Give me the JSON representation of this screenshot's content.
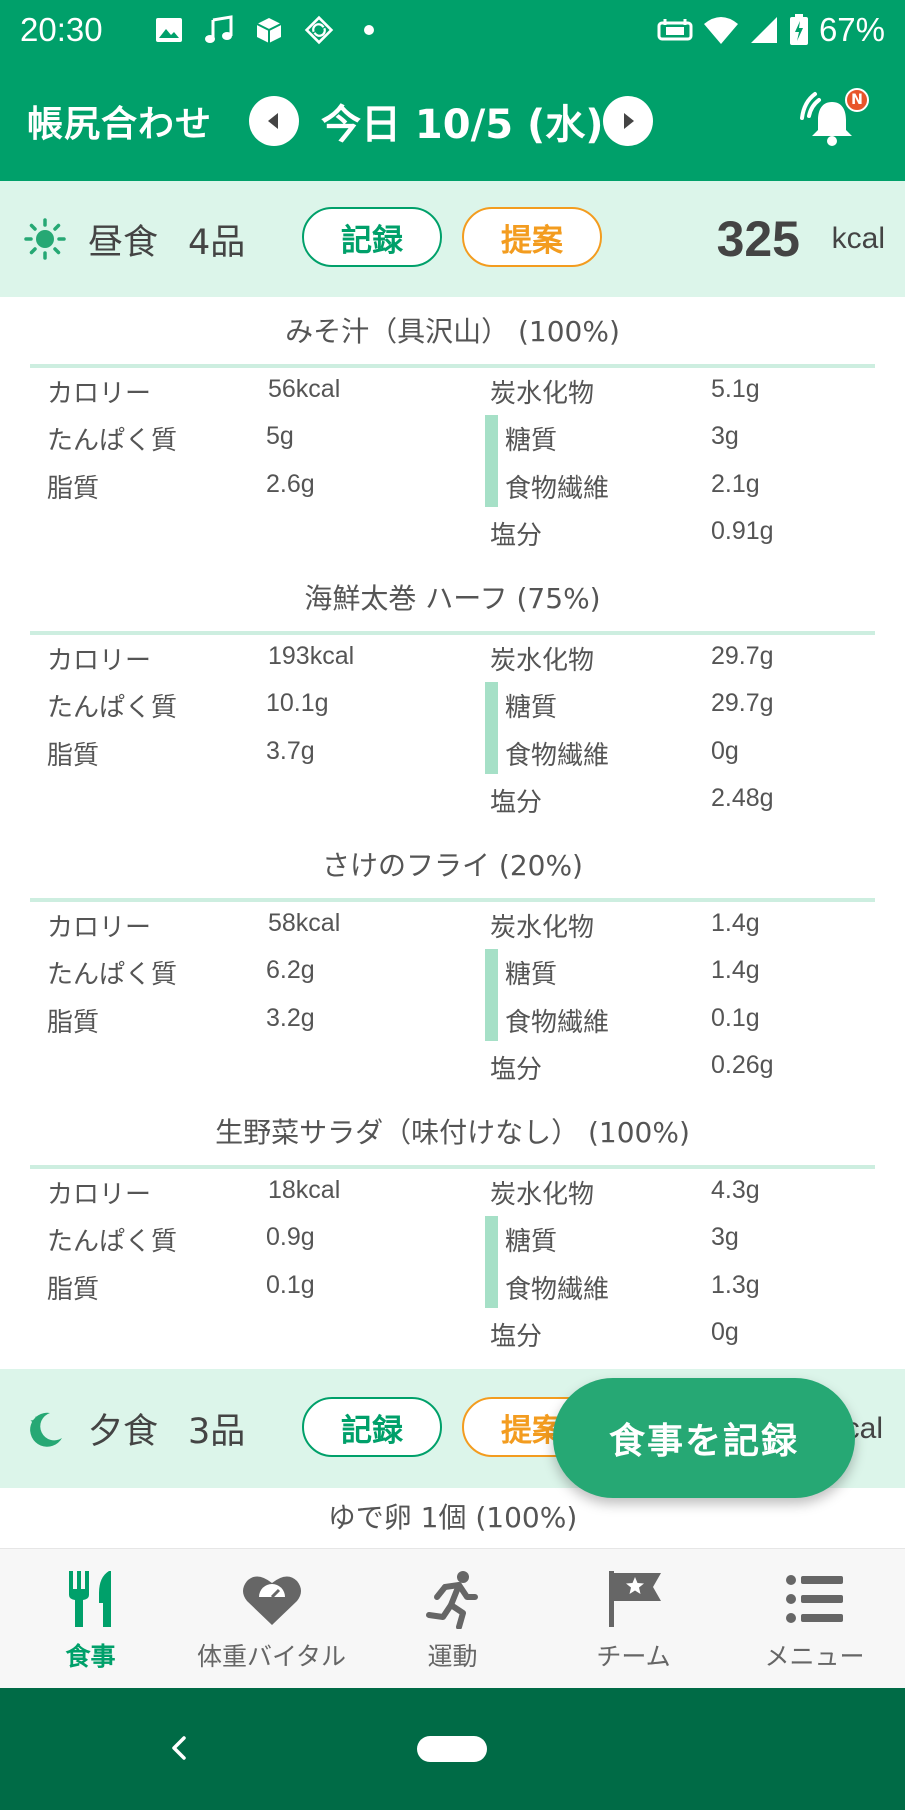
{
  "status_bar": {
    "time": "20:30",
    "battery": "67%",
    "left_icons": [
      "image-icon",
      "music-note-icon",
      "box-icon",
      "sync-icon",
      "dot-icon"
    ],
    "right_icons": [
      "vpn-icon",
      "wifi-icon",
      "signal-icon",
      "battery-charging-icon"
    ]
  },
  "header": {
    "title": "帳尻合わせ",
    "date": "今日 10/5 (水)",
    "notification_badge": "N"
  },
  "lunch": {
    "name": "昼食",
    "count": "4品",
    "record_label": "記録",
    "suggest_label": "提案",
    "kcal_value": "325",
    "kcal_unit": "kcal",
    "foods": [
      {
        "name": "みそ汁（具沢山） (100%)",
        "calorie_label": "カロリー",
        "calorie": "56kcal",
        "protein_label": "たんぱく質",
        "protein": "5g",
        "fat_label": "脂質",
        "fat": "2.6g",
        "carb_label": "炭水化物",
        "carb": "5.1g",
        "sugar_label": "糖質",
        "sugar": "3g",
        "fiber_label": "食物繊維",
        "fiber": "2.1g",
        "salt_label": "塩分",
        "salt": "0.91g"
      },
      {
        "name": "海鮮太巻 ハーフ (75%)",
        "calorie_label": "カロリー",
        "calorie": "193kcal",
        "protein_label": "たんぱく質",
        "protein": "10.1g",
        "fat_label": "脂質",
        "fat": "3.7g",
        "carb_label": "炭水化物",
        "carb": "29.7g",
        "sugar_label": "糖質",
        "sugar": "29.7g",
        "fiber_label": "食物繊維",
        "fiber": "0g",
        "salt_label": "塩分",
        "salt": "2.48g"
      },
      {
        "name": "さけのフライ (20%)",
        "calorie_label": "カロリー",
        "calorie": "58kcal",
        "protein_label": "たんぱく質",
        "protein": "6.2g",
        "fat_label": "脂質",
        "fat": "3.2g",
        "carb_label": "炭水化物",
        "carb": "1.4g",
        "sugar_label": "糖質",
        "sugar": "1.4g",
        "fiber_label": "食物繊維",
        "fiber": "0.1g",
        "salt_label": "塩分",
        "salt": "0.26g"
      },
      {
        "name": "生野菜サラダ（味付けなし） (100%)",
        "calorie_label": "カロリー",
        "calorie": "18kcal",
        "protein_label": "たんぱく質",
        "protein": "0.9g",
        "fat_label": "脂質",
        "fat": "0.1g",
        "carb_label": "炭水化物",
        "carb": "4.3g",
        "sugar_label": "糖質",
        "sugar": "3g",
        "fiber_label": "食物繊維",
        "fiber": "1.3g",
        "salt_label": "塩分",
        "salt": "0g"
      }
    ]
  },
  "dinner": {
    "name": "夕食",
    "count": "3品",
    "record_label": "記録",
    "suggest_label": "提案",
    "kcal_unit_partial": "cal",
    "first_food": "ゆで卵 1個 (100%)"
  },
  "fab": {
    "label": "食事を記録"
  },
  "bottom_nav": [
    {
      "label": "食事",
      "icon": "fork-knife-icon",
      "active": true
    },
    {
      "label": "体重バイタル",
      "icon": "heart-scale-icon",
      "active": false
    },
    {
      "label": "運動",
      "icon": "running-icon",
      "active": false
    },
    {
      "label": "チーム",
      "icon": "flag-star-icon",
      "active": false
    },
    {
      "label": "メニュー",
      "icon": "list-icon",
      "active": false
    }
  ],
  "colors": {
    "primary": "#00a06a",
    "section_bg": "#dcf5ea",
    "accent_orange": "#f39c1f",
    "system_nav": "#006b46"
  }
}
